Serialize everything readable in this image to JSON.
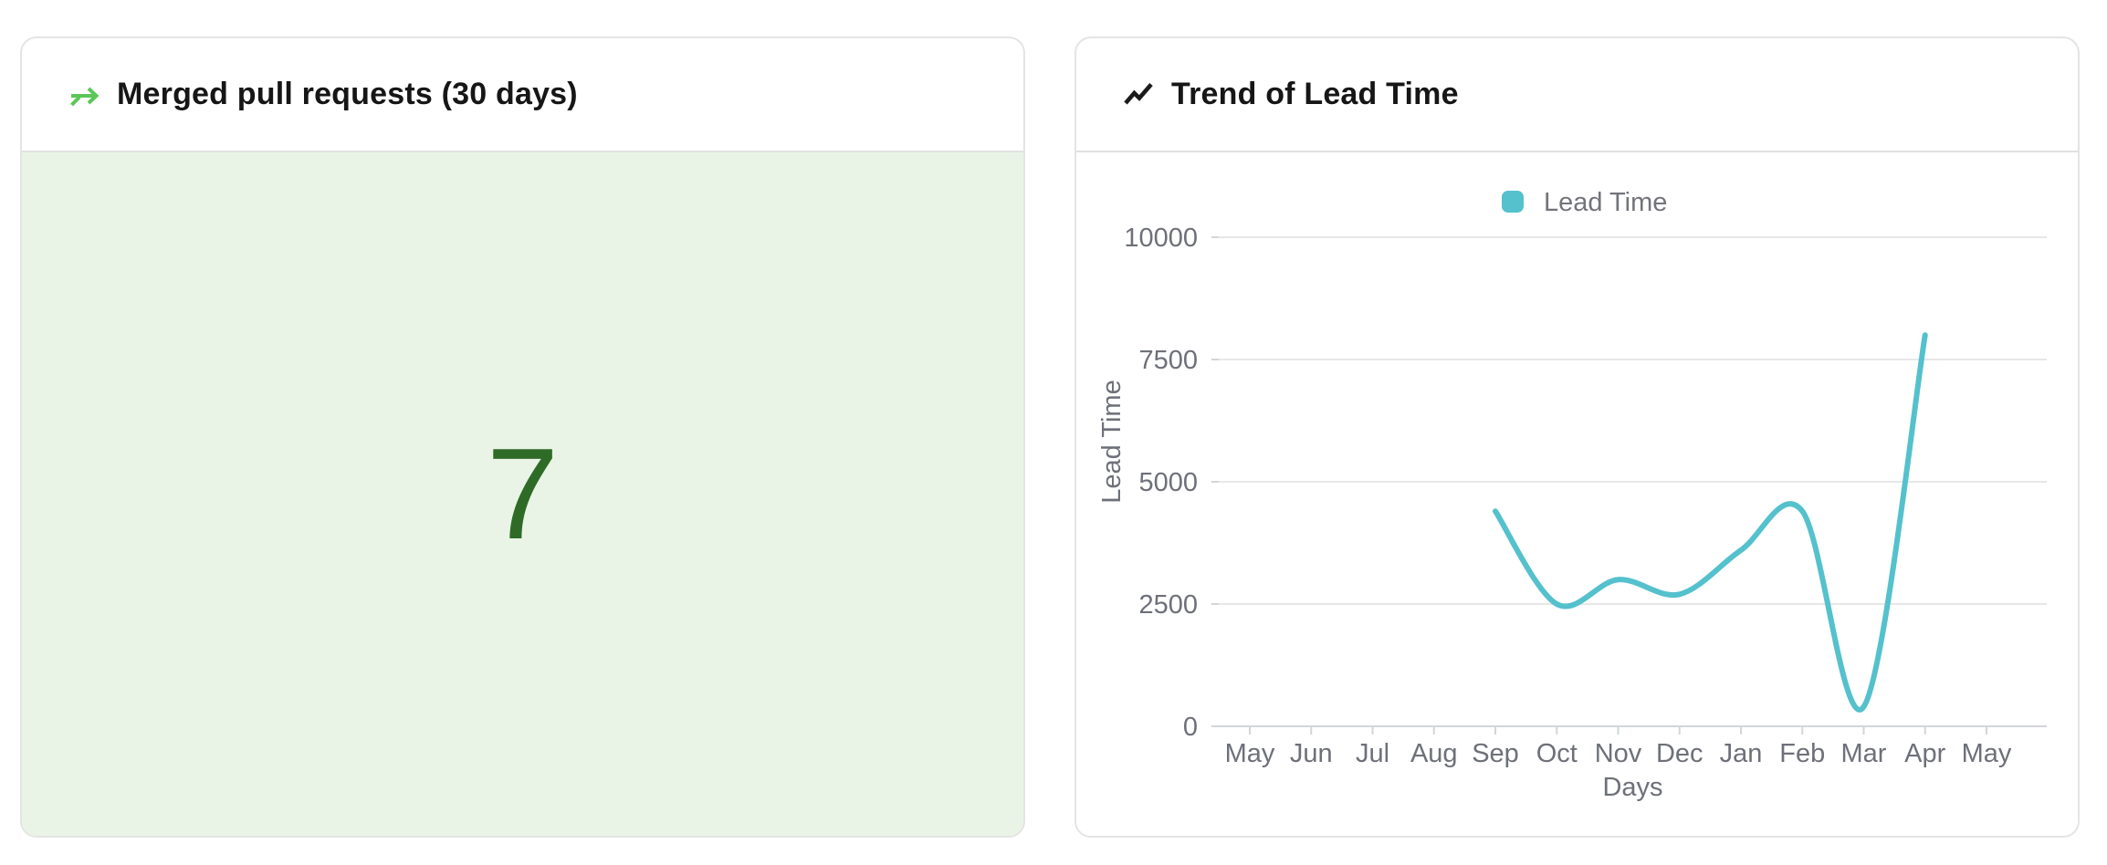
{
  "cards": {
    "merged_prs": {
      "title": "Merged pull requests (30 days)",
      "value": "7",
      "value_color": "#2e6b27",
      "body_bg_color": "#eaf4e6",
      "icon": "merge-arrow-icon",
      "icon_color": "#5cc758"
    },
    "lead_time": {
      "title": "Trend of Lead Time",
      "icon": "trend-line-icon",
      "icon_color": "#1b1b1b"
    }
  },
  "chart_data": {
    "type": "line",
    "title": "Trend of Lead Time",
    "categories": [
      "May",
      "Jun",
      "Jul",
      "Aug",
      "Sep",
      "Oct",
      "Nov",
      "Dec",
      "Jan",
      "Feb",
      "Mar",
      "Apr",
      "May"
    ],
    "series": [
      {
        "name": "Lead Time",
        "color": "#54c1cd",
        "smooth": true,
        "points": [
          {
            "month": "Sep",
            "value": 4400
          },
          {
            "month": "Oct",
            "value": 2500
          },
          {
            "month": "Nov",
            "value": 3000
          },
          {
            "month": "Dec",
            "value": 2700
          },
          {
            "month": "Jan",
            "value": 3600
          },
          {
            "month": "Feb",
            "value": 4400
          },
          {
            "month": "Mar",
            "value": 400
          },
          {
            "month": "Apr",
            "value": 8000
          }
        ]
      }
    ],
    "xlabel": "Days",
    "ylabel": "Lead Time",
    "ylim": [
      0,
      10000
    ],
    "yticks": [
      0,
      2500,
      5000,
      7500,
      10000
    ],
    "legend": {
      "label": "Lead Time",
      "position": "top-center",
      "swatch_color": "#54c1cd"
    },
    "grid": true,
    "grid_color": "#e7e7e7",
    "axis_color": "#d2d5d9",
    "text_color": "#6e7079"
  }
}
